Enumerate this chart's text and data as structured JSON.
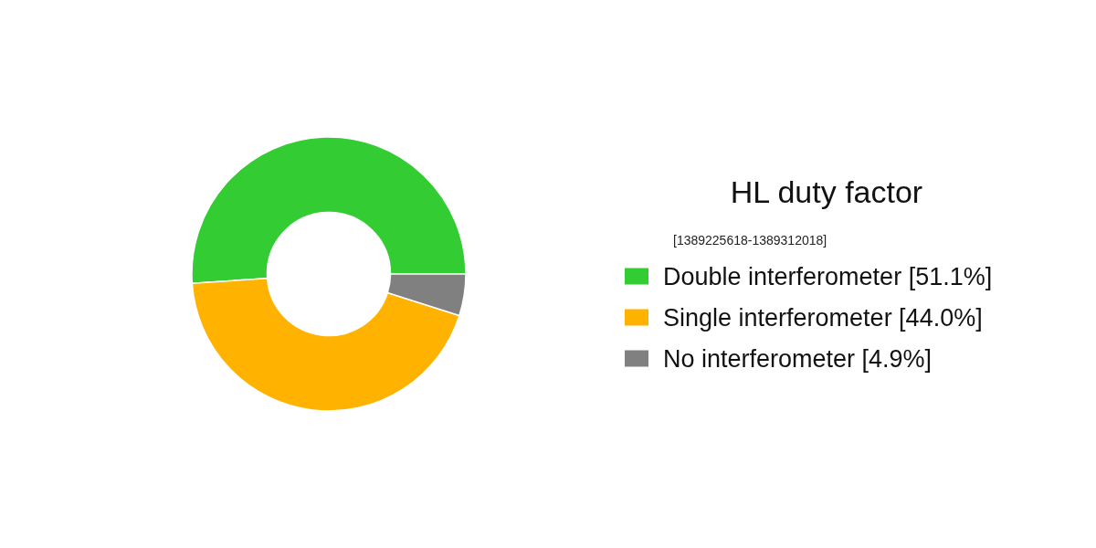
{
  "chart_data": {
    "type": "donut",
    "title": "HL duty factor",
    "subtitle": "[1389225618-1389312018]",
    "categories": [
      "Double interferometer [51.1%]",
      "Single interferometer [44.0%]",
      "No interferometer [4.9%]"
    ],
    "values": [
      51.1,
      44.0,
      4.9
    ],
    "colors": [
      "#33cc33",
      "#ffb200",
      "#808080"
    ],
    "legend": "right"
  }
}
